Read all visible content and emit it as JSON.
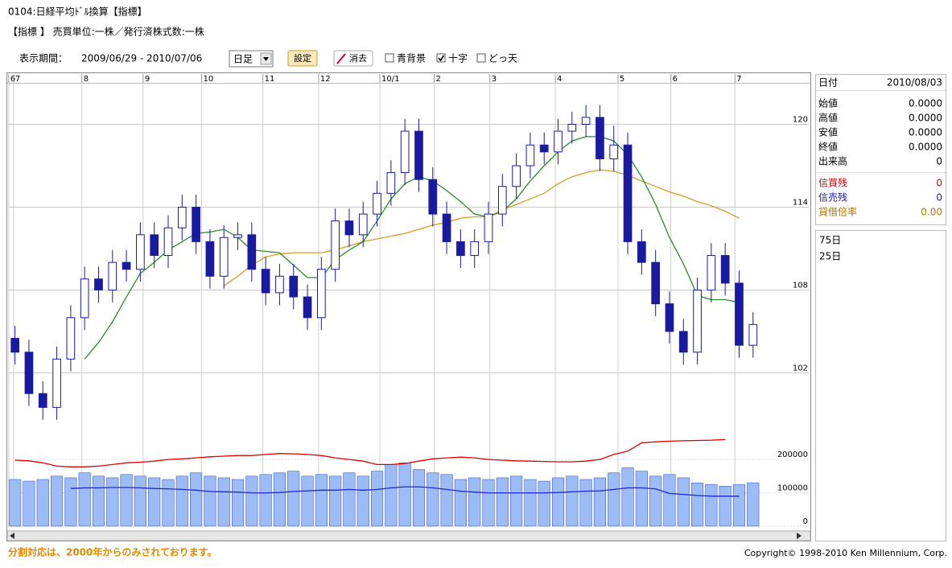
{
  "header": {
    "title": "0104:日経平均ﾄﾞﾙ換算【指標】",
    "subtitle": "【指標 】 売買単位:一株／発行済株式数:一株"
  },
  "controls": {
    "period_label": "表示期間：",
    "period": "2009/06/29 - 2010/07/06",
    "interval": "日足",
    "set_button": "設定",
    "clear_button": "消去",
    "checkboxes": [
      {
        "label": "青背景",
        "checked": false
      },
      {
        "label": "十字",
        "checked": true
      },
      {
        "label": "どっ天",
        "checked": false
      }
    ]
  },
  "info_panel": {
    "rows": [
      [
        "日付",
        "2010/08/03"
      ],
      [
        "始値",
        "0.0000"
      ],
      [
        "高値",
        "0.0000"
      ],
      [
        "安値",
        "0.0000"
      ],
      [
        "終値",
        "0.0000"
      ],
      [
        "出来高",
        "0"
      ]
    ],
    "credit_rows": [
      {
        "label": "信買残",
        "value": "0",
        "color": "#cc0000"
      },
      {
        "label": "信売残",
        "value": "0",
        "color": "#1a1aa0"
      },
      {
        "label": "貸借倍率",
        "value": "0.00",
        "color": "#b07800"
      }
    ]
  },
  "chart_data": {
    "type": "candlestick",
    "xlim": [
      -0.5,
      57
    ],
    "xticks": [
      {
        "value": -0.45,
        "label": "6"
      },
      {
        "value": -0.1,
        "label": "7"
      },
      {
        "value": 4.8,
        "label": "8"
      },
      {
        "value": 9.2,
        "label": "9"
      },
      {
        "value": 13.4,
        "label": "10"
      },
      {
        "value": 17.8,
        "label": "11"
      },
      {
        "value": 21.8,
        "label": "12"
      },
      {
        "value": 26.2,
        "label": "10/1"
      },
      {
        "value": 30.1,
        "label": "2"
      },
      {
        "value": 34.1,
        "label": "3"
      },
      {
        "value": 38.8,
        "label": "4"
      },
      {
        "value": 43.3,
        "label": "5"
      },
      {
        "value": 47.1,
        "label": "6"
      },
      {
        "value": 51.7,
        "label": "7"
      }
    ],
    "ylim": [
      90.9,
      123.0
    ],
    "yticks": [
      102,
      108,
      114,
      120
    ],
    "y2lim": [
      0,
      1330000
    ],
    "y2ticks": [
      0,
      100000,
      200000
    ],
    "grid": true,
    "up_color": "#ffffff",
    "down_color": "#1a1aa0",
    "open": [
      104.5,
      103.5,
      100.5,
      99.5,
      103.0,
      106.0,
      108.8,
      108.0,
      110.0,
      109.5,
      112.0,
      110.5,
      112.5,
      114.0,
      111.5,
      109.0,
      111.8,
      112.0,
      109.5,
      107.8,
      109.0,
      107.5,
      106.0,
      109.5,
      113.0,
      112.0,
      113.5,
      115.0,
      116.5,
      119.5,
      116.0,
      113.5,
      111.5,
      110.5,
      111.5,
      113.5,
      115.5,
      117.0,
      118.5,
      118.0,
      119.5,
      120.0,
      120.5,
      117.5,
      118.5,
      111.5,
      110.0,
      107.0,
      105.0,
      103.5,
      108.0,
      110.5,
      108.5,
      104.0
    ],
    "high": [
      105.4,
      104.4,
      101.4,
      103.9,
      106.9,
      109.7,
      109.7,
      110.9,
      110.9,
      112.9,
      112.9,
      113.4,
      114.9,
      114.9,
      112.4,
      112.7,
      112.9,
      112.9,
      110.4,
      109.9,
      109.9,
      108.4,
      110.4,
      113.9,
      113.9,
      114.4,
      115.9,
      117.4,
      120.4,
      120.4,
      116.9,
      114.4,
      112.4,
      112.4,
      114.4,
      116.4,
      117.9,
      119.4,
      119.4,
      120.4,
      120.9,
      121.4,
      121.4,
      119.9,
      119.4,
      112.4,
      110.9,
      107.9,
      105.9,
      108.9,
      111.4,
      111.4,
      109.4,
      106.4
    ],
    "low": [
      102.6,
      99.6,
      98.6,
      98.6,
      102.1,
      105.1,
      107.1,
      107.1,
      108.6,
      108.6,
      109.6,
      109.6,
      111.6,
      110.6,
      108.1,
      108.1,
      110.9,
      108.6,
      106.9,
      106.9,
      106.6,
      105.1,
      105.1,
      108.6,
      111.1,
      111.1,
      112.6,
      114.1,
      115.6,
      115.1,
      112.6,
      110.6,
      109.6,
      109.6,
      110.6,
      112.6,
      114.6,
      116.1,
      117.1,
      117.1,
      118.6,
      119.1,
      116.6,
      116.6,
      110.6,
      109.1,
      106.1,
      104.1,
      102.6,
      102.6,
      107.1,
      107.6,
      103.1,
      103.1
    ],
    "close": [
      103.5,
      100.5,
      99.5,
      103.0,
      106.0,
      108.8,
      108.0,
      110.0,
      109.5,
      112.0,
      110.5,
      112.5,
      114.0,
      111.5,
      109.0,
      111.8,
      112.0,
      109.5,
      107.8,
      109.0,
      107.5,
      106.0,
      109.5,
      113.0,
      112.0,
      113.5,
      115.0,
      116.5,
      119.5,
      116.0,
      113.5,
      111.5,
      110.5,
      111.5,
      113.5,
      115.5,
      117.0,
      118.5,
      118.0,
      119.5,
      120.0,
      120.5,
      117.5,
      118.5,
      111.5,
      110.0,
      107.0,
      105.0,
      103.5,
      108.0,
      110.5,
      108.5,
      104.0,
      105.5
    ],
    "series": [
      {
        "name": "75日",
        "type": "line",
        "color": "#d49a2a",
        "values": [
          null,
          null,
          null,
          null,
          null,
          null,
          null,
          null,
          null,
          null,
          null,
          null,
          null,
          null,
          null,
          108.3,
          109.0,
          109.8,
          110.4,
          110.6,
          110.7,
          110.7,
          110.7,
          110.9,
          111.2,
          111.5,
          111.7,
          111.9,
          112.1,
          112.4,
          112.7,
          112.9,
          113.2,
          113.3,
          113.3,
          113.8,
          114.2,
          114.6,
          115.0,
          115.7,
          116.2,
          116.5,
          116.7,
          116.6,
          116.3,
          115.9,
          115.5,
          115.1,
          114.8,
          114.4,
          114.1,
          113.7,
          113.2,
          null
        ]
      },
      {
        "name": "25日",
        "type": "line",
        "color": "#2a8a2a",
        "values": [
          null,
          null,
          null,
          null,
          null,
          103.0,
          104.2,
          105.7,
          107.5,
          109.2,
          110.0,
          110.9,
          111.5,
          112.1,
          112.2,
          112.4,
          111.8,
          110.9,
          110.8,
          110.7,
          109.8,
          108.9,
          108.9,
          110.2,
          110.9,
          111.5,
          113.0,
          114.6,
          115.7,
          116.2,
          115.9,
          115.2,
          114.4,
          113.5,
          113.3,
          113.7,
          114.6,
          115.9,
          117.0,
          118.0,
          118.8,
          119.1,
          119.1,
          118.8,
          117.8,
          116.2,
          114.2,
          111.8,
          109.9,
          107.6,
          107.3,
          107.3,
          107.1,
          null
        ]
      },
      {
        "type": "bar",
        "axis": "y2",
        "color": "#9dbcf5",
        "values": [
          140000,
          135000,
          140000,
          150000,
          145000,
          160000,
          150000,
          145000,
          155000,
          150000,
          145000,
          140000,
          150000,
          160000,
          150000,
          145000,
          140000,
          150000,
          155000,
          160000,
          165000,
          150000,
          155000,
          150000,
          160000,
          150000,
          165000,
          185000,
          190000,
          170000,
          160000,
          155000,
          140000,
          145000,
          140000,
          145000,
          150000,
          140000,
          135000,
          145000,
          150000,
          140000,
          145000,
          160000,
          175000,
          165000,
          150000,
          155000,
          145000,
          130000,
          125000,
          120000,
          125000,
          130000
        ]
      },
      {
        "type": "line",
        "axis": "y2",
        "color": "#1a2ad0",
        "values": [
          null,
          null,
          null,
          null,
          113000,
          115000,
          115000,
          116000,
          116000,
          115000,
          113000,
          112000,
          110000,
          108000,
          104000,
          103000,
          102000,
          100000,
          100000,
          101000,
          104000,
          106000,
          108000,
          108000,
          110000,
          108000,
          110000,
          115000,
          118000,
          118000,
          115000,
          110000,
          105000,
          102000,
          100000,
          100000,
          100000,
          100000,
          100000,
          101000,
          103000,
          105000,
          106000,
          110000,
          115000,
          115000,
          112000,
          98000,
          95000,
          92000,
          90000,
          90000,
          90000,
          null
        ]
      },
      {
        "type": "line",
        "axis": "y2",
        "color": "#dd0000",
        "values": [
          198000,
          196000,
          190000,
          180000,
          178000,
          178000,
          180000,
          185000,
          190000,
          192000,
          195000,
          200000,
          202000,
          205000,
          208000,
          210000,
          212000,
          212000,
          215000,
          218000,
          217000,
          215000,
          212000,
          205000,
          200000,
          195000,
          185000,
          185000,
          188000,
          195000,
          202000,
          205000,
          207000,
          205000,
          200000,
          198000,
          196000,
          195000,
          194000,
          193000,
          193000,
          195000,
          200000,
          215000,
          225000,
          250000,
          253000,
          255000,
          256000,
          257000,
          258000,
          260000,
          null,
          null
        ]
      }
    ]
  },
  "footer": {
    "note": "分割対応は、2000年からのみされております。",
    "copyright": "Copyright© 1998-2010 Ken Millennium, Corp."
  }
}
